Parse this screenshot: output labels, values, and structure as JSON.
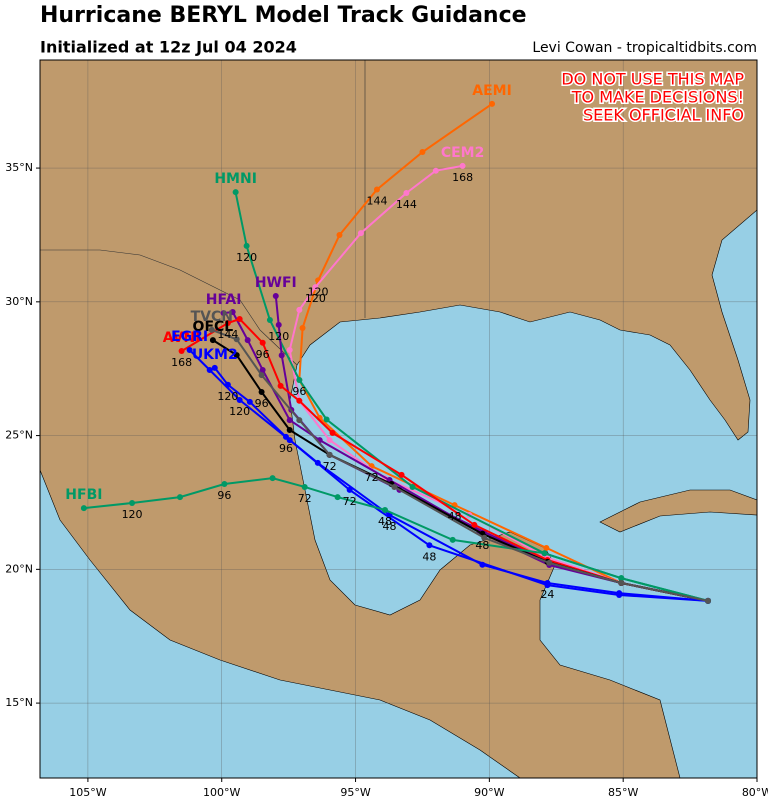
{
  "chart_data": {
    "type": "line",
    "title": "Hurricane BERYL Model Track Guidance",
    "subtitle": "Initialized at 12z Jul 04 2024",
    "credit": "Levi Cowan - tropicaltidbits.com",
    "warning": [
      "DO NOT USE THIS MAP",
      "TO MAKE DECISIONS!",
      "SEEK OFFICIAL INFO"
    ],
    "xlim": [
      -106.79,
      -80
    ],
    "ylim": [
      12.2,
      39.04
    ],
    "xticks": [
      {
        "value": -105,
        "label": "105°W"
      },
      {
        "value": -100,
        "label": "100°W"
      },
      {
        "value": -95,
        "label": "95°W"
      },
      {
        "value": -90,
        "label": "90°W"
      },
      {
        "value": -85,
        "label": "85°W"
      },
      {
        "value": -80,
        "label": "80°W"
      }
    ],
    "yticks": [
      {
        "value": 15,
        "label": "15°N"
      },
      {
        "value": 20,
        "label": "20°N"
      },
      {
        "value": 25,
        "label": "25°N"
      },
      {
        "value": 30,
        "label": "30°N"
      },
      {
        "value": 35,
        "label": "35°N"
      }
    ],
    "grid": true,
    "series": [
      {
        "name": "AEMI",
        "color": "#ff6600",
        "x": [
          -81.83,
          -85.07,
          -87.87,
          -91.3,
          -94.4,
          -96.34,
          -97.1,
          -96.98,
          -96.4,
          -95.6,
          -94.2,
          -92.5,
          -89.9
        ],
        "values": [
          18.82,
          19.49,
          20.8,
          22.4,
          23.86,
          25.66,
          27.08,
          29.02,
          30.8,
          32.5,
          34.2,
          35.6,
          37.4
        ],
        "hour_labels": [
          null,
          null,
          null,
          "48",
          "72",
          null,
          "96",
          null,
          "120",
          null,
          "144",
          null,
          null
        ]
      },
      {
        "name": "CEM2",
        "color": "#ff77cc",
        "x": [
          -81.83,
          -85.07,
          -87.83,
          -90.75,
          -93.9,
          -95.97,
          -97.1,
          -97.46,
          -97.1,
          -96.5,
          -94.8,
          -93.1,
          -92.0,
          -91.0
        ],
        "values": [
          18.82,
          19.49,
          20.43,
          22.03,
          23.4,
          24.83,
          26.3,
          28.2,
          29.7,
          30.55,
          32.57,
          34.07,
          34.9,
          35.08
        ],
        "hour_labels": [
          null,
          null,
          null,
          null,
          null,
          null,
          null,
          null,
          null,
          "120",
          null,
          "144",
          null,
          "168"
        ]
      },
      {
        "name": "HMNI",
        "color": "#009966",
        "x": [
          -81.83,
          -85.07,
          -87.94,
          -92.87,
          -96.08,
          -97.1,
          -98.2,
          -99.07,
          -99.48
        ],
        "values": [
          18.82,
          19.67,
          20.6,
          23.08,
          25.6,
          27.08,
          29.32,
          32.09,
          34.1
        ],
        "hour_labels": [
          null,
          null,
          null,
          null,
          null,
          null,
          null,
          "120",
          null
        ]
      },
      {
        "name": "HWFI",
        "color": "#660099",
        "x": [
          -81.83,
          -85.07,
          -87.76,
          -90.2,
          -93.36,
          -95.97,
          -97.4,
          -97.76,
          -97.87,
          -97.98
        ],
        "values": [
          18.82,
          19.49,
          20.24,
          21.4,
          22.97,
          24.28,
          25.96,
          28.0,
          29.14,
          30.22
        ],
        "hour_labels": [
          null,
          null,
          null,
          null,
          null,
          null,
          null,
          null,
          "120",
          null
        ]
      },
      {
        "name": "HFAI",
        "color": "#660099",
        "x": [
          -81.83,
          -85.07,
          -87.76,
          -90.37,
          -93.73,
          -96.34,
          -97.46,
          -98.47,
          -99.03,
          -99.59,
          -99.93
        ],
        "values": [
          18.82,
          19.49,
          20.16,
          21.4,
          23.34,
          24.83,
          25.58,
          27.45,
          28.57,
          29.62,
          29.58
        ],
        "hour_labels": [
          null,
          null,
          null,
          null,
          null,
          null,
          null,
          null,
          null,
          null,
          null
        ]
      },
      {
        "name": "AVNI",
        "color": "#ff0000",
        "x": [
          -81.83,
          -85.07,
          -87.83,
          -90.56,
          -93.28,
          -95.86,
          -97.1,
          -97.8,
          -98.47,
          -99.33,
          -99.77,
          -101.5
        ],
        "values": [
          18.82,
          19.49,
          20.35,
          21.66,
          23.53,
          25.1,
          26.3,
          26.86,
          28.47,
          29.36,
          29.21,
          28.16
        ],
        "hour_labels": [
          null,
          null,
          null,
          null,
          null,
          null,
          null,
          null,
          "96",
          null,
          "144",
          "168"
        ]
      },
      {
        "name": "OFCL",
        "color": "#000000",
        "x": [
          -81.83,
          -85.07,
          -87.83,
          -90.26,
          -93.66,
          -95.97,
          -97.46,
          -98.51,
          -99.44,
          -100.33
        ],
        "values": [
          18.82,
          19.49,
          20.28,
          21.33,
          23.19,
          24.28,
          25.21,
          26.63,
          28.01,
          28.57
        ],
        "hour_labels": [
          null,
          null,
          null,
          "48",
          null,
          "72",
          null,
          "96",
          null,
          null
        ]
      },
      {
        "name": "EGRI",
        "color": "#0000ff",
        "x": [
          -81.83,
          -85.15,
          -87.83,
          -92.24,
          -95.22,
          -97.46,
          -99.33,
          -100.45,
          -101.2
        ],
        "values": [
          18.82,
          19.04,
          19.41,
          20.9,
          22.97,
          24.83,
          26.33,
          27.45,
          28.2
        ],
        "hour_labels": [
          null,
          null,
          null,
          "48",
          "72",
          null,
          "120",
          null,
          null
        ]
      },
      {
        "name": "UKM2",
        "color": "#0000ff",
        "x": [
          -81.83,
          -85.15,
          -87.83,
          -90.26,
          -93.73,
          -96.41,
          -97.6,
          -98.95,
          -99.77,
          -100.26
        ],
        "values": [
          18.82,
          19.11,
          19.49,
          20.17,
          22.03,
          23.98,
          24.95,
          26.26,
          26.9,
          27.53
        ],
        "hour_labels": [
          null,
          null,
          "24",
          null,
          "48",
          null,
          "96",
          null,
          "120",
          null
        ]
      },
      {
        "name": "HFBI",
        "color": "#009966",
        "x": [
          -81.83,
          -85.07,
          -87.94,
          -91.37,
          -93.9,
          -95.67,
          -96.9,
          -98.1,
          -99.9,
          -101.56,
          -103.35,
          -105.15
        ],
        "values": [
          18.82,
          19.67,
          20.6,
          21.1,
          22.22,
          22.7,
          23.08,
          23.41,
          23.19,
          22.7,
          22.48,
          22.29
        ],
        "hour_labels": [
          null,
          null,
          null,
          null,
          "48",
          null,
          "72",
          null,
          "96",
          null,
          "120",
          null
        ]
      },
      {
        "name": "TVCN",
        "color": "#555555",
        "x": [
          -81.83,
          -85.07,
          -87.76,
          -90.19,
          -93.55,
          -95.97,
          -97.1,
          -98.51,
          -99.44,
          -100.37
        ],
        "values": [
          18.82,
          19.49,
          20.24,
          21.18,
          23.08,
          24.28,
          25.58,
          27.26,
          28.6,
          28.95
        ],
        "hour_labels": [
          null,
          null,
          null,
          null,
          null,
          null,
          null,
          null,
          null,
          null
        ]
      }
    ]
  }
}
